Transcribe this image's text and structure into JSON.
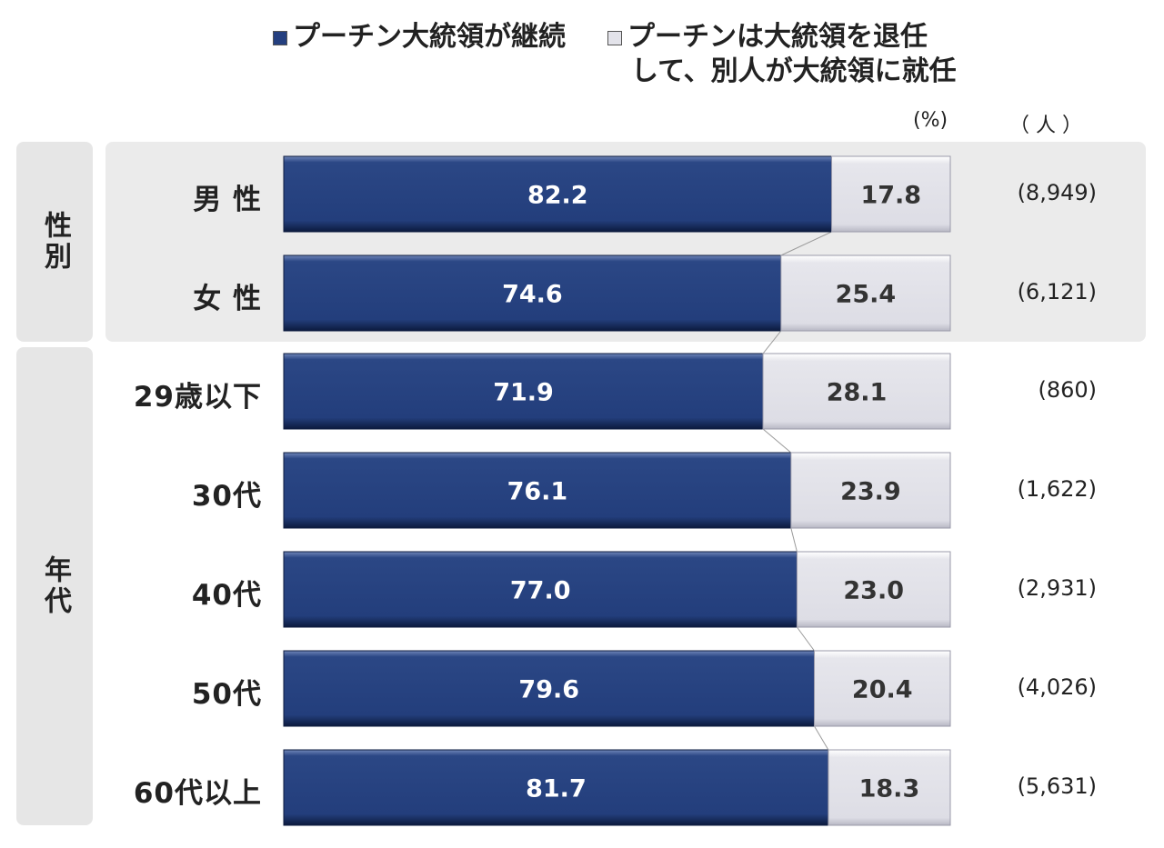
{
  "legend": {
    "continue": "プーチン大統領が継続",
    "replace_line1": "プーチンは大統領を退任",
    "replace_line2": "して、別人が大統領に就任"
  },
  "units": {
    "percent": "(%)",
    "people": "（ 人 ）"
  },
  "groups": [
    {
      "label": "性別"
    },
    {
      "label": "年代"
    }
  ],
  "colors": {
    "continue": "#243f7f",
    "replace": "#e3e3ea",
    "group_bg": "#ebebeb"
  },
  "chart_data": {
    "type": "bar",
    "orientation": "horizontal",
    "stacked": true,
    "xlim": [
      0,
      100
    ],
    "categories": [
      "男 性",
      "女 性",
      "29歳以下",
      "30代",
      "40代",
      "50代",
      "60代以上"
    ],
    "series": [
      {
        "name": "プーチン大統領が継続",
        "values": [
          82.2,
          74.6,
          71.9,
          76.1,
          77.0,
          79.6,
          81.7
        ]
      },
      {
        "name": "プーチンは大統領を退任して、別人が大統領に就任",
        "values": [
          17.8,
          25.4,
          28.1,
          23.9,
          23.0,
          20.4,
          18.3
        ]
      }
    ],
    "value_labels": [
      [
        "82.2",
        "74.6",
        "71.9",
        "76.1",
        "77.0",
        "79.6",
        "81.7"
      ],
      [
        "17.8",
        "25.4",
        "28.1",
        "23.9",
        "23.0",
        "20.4",
        "18.3"
      ]
    ],
    "counts": [
      "(8,949)",
      "(6,121)",
      "(860)",
      "(1,622)",
      "(2,931)",
      "(4,026)",
      "(5,631)"
    ]
  }
}
